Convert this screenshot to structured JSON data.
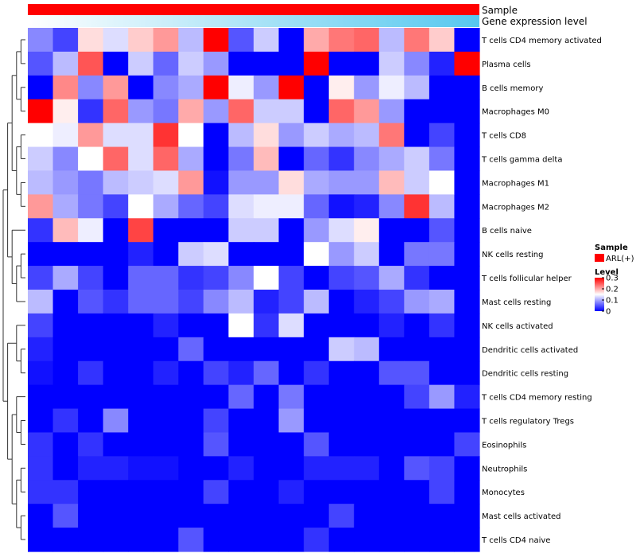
{
  "chart_data": {
    "type": "heatmap",
    "annotation_tracks": [
      {
        "name": "Sample",
        "color": "#ff0000"
      },
      {
        "name": "Gene expression level",
        "gradient": [
          "#ffffff",
          "#56c8ef"
        ]
      }
    ],
    "rows": [
      "T cells CD4 memory activated",
      "Plasma cells",
      "B cells memory",
      "Macrophages M0",
      "T cells CD8",
      "T cells gamma delta",
      "Macrophages M1",
      "Macrophages M2",
      "B cells naive",
      "NK cells resting",
      "T cells follicular helper",
      "Mast cells resting",
      "NK cells activated",
      "Dendritic cells activated",
      "Dendritic cells resting",
      "T cells CD4 memory resting",
      "T cells regulatory  Tregs",
      "Eosinophils",
      "Neutrophils",
      "Monocytes",
      "Mast cells activated",
      "T cells CD4 naive"
    ],
    "n_columns": 18,
    "values": [
      [
        0.08,
        0.04,
        0.17,
        0.13,
        0.18,
        0.21,
        0.11,
        0.3,
        0.05,
        0.12,
        0.0,
        0.2,
        0.23,
        0.24,
        0.11,
        0.23,
        0.18,
        0.0
      ],
      [
        0.05,
        0.11,
        0.25,
        0.0,
        0.12,
        0.06,
        0.12,
        0.09,
        0.0,
        0.0,
        0.0,
        0.3,
        0.0,
        0.0,
        0.12,
        0.08,
        0.02,
        0.3
      ],
      [
        0.0,
        0.22,
        0.08,
        0.21,
        0.0,
        0.08,
        0.1,
        0.3,
        0.14,
        0.09,
        0.3,
        0.0,
        0.16,
        0.09,
        0.14,
        0.11,
        0.0,
        0.0
      ],
      [
        0.3,
        0.16,
        0.03,
        0.24,
        0.09,
        0.07,
        0.2,
        0.09,
        0.24,
        0.12,
        0.12,
        0.0,
        0.24,
        0.21,
        0.09,
        0.0,
        0.0,
        0.0
      ],
      [
        0.15,
        0.14,
        0.21,
        0.13,
        0.13,
        0.27,
        0.15,
        0.0,
        0.11,
        0.17,
        0.09,
        0.12,
        0.1,
        0.11,
        0.23,
        0.0,
        0.04,
        0.0
      ],
      [
        0.12,
        0.08,
        0.15,
        0.24,
        0.13,
        0.24,
        0.1,
        0.0,
        0.07,
        0.19,
        0.0,
        0.06,
        0.03,
        0.08,
        0.1,
        0.12,
        0.07,
        0.0
      ],
      [
        0.11,
        0.09,
        0.07,
        0.11,
        0.12,
        0.13,
        0.21,
        0.01,
        0.09,
        0.09,
        0.17,
        0.1,
        0.09,
        0.09,
        0.19,
        0.12,
        0.15,
        0.0
      ],
      [
        0.21,
        0.1,
        0.07,
        0.04,
        0.15,
        0.1,
        0.06,
        0.04,
        0.13,
        0.14,
        0.14,
        0.06,
        0.01,
        0.02,
        0.08,
        0.27,
        0.11,
        0.0
      ],
      [
        0.03,
        0.19,
        0.14,
        0.0,
        0.26,
        0.0,
        0.0,
        0.0,
        0.12,
        0.12,
        0.0,
        0.09,
        0.13,
        0.16,
        0.0,
        0.0,
        0.05,
        0.0
      ],
      [
        0.0,
        0.0,
        0.0,
        0.0,
        0.02,
        0.0,
        0.12,
        0.13,
        0.0,
        0.0,
        0.0,
        0.15,
        0.09,
        0.12,
        0.0,
        0.07,
        0.07,
        0.0
      ],
      [
        0.04,
        0.1,
        0.04,
        0.0,
        0.06,
        0.06,
        0.03,
        0.04,
        0.08,
        0.15,
        0.04,
        0.0,
        0.04,
        0.05,
        0.1,
        0.03,
        0.0,
        0.0
      ],
      [
        0.11,
        0.0,
        0.05,
        0.03,
        0.06,
        0.06,
        0.04,
        0.08,
        0.11,
        0.02,
        0.04,
        0.11,
        0.0,
        0.02,
        0.04,
        0.09,
        0.1,
        0.0
      ],
      [
        0.04,
        0.0,
        0.0,
        0.0,
        0.0,
        0.02,
        0.0,
        0.0,
        0.15,
        0.03,
        0.13,
        0.0,
        0.0,
        0.0,
        0.02,
        0.0,
        0.03,
        0.0
      ],
      [
        0.02,
        0.0,
        0.0,
        0.0,
        0.0,
        0.0,
        0.06,
        0.0,
        0.0,
        0.0,
        0.0,
        0.0,
        0.12,
        0.11,
        0.0,
        0.0,
        0.0,
        0.0
      ],
      [
        0.01,
        0.0,
        0.03,
        0.0,
        0.0,
        0.02,
        0.0,
        0.04,
        0.02,
        0.06,
        0.0,
        0.03,
        0.0,
        0.0,
        0.05,
        0.05,
        0.0,
        0.0
      ],
      [
        0.0,
        0.0,
        0.0,
        0.0,
        0.0,
        0.0,
        0.0,
        0.0,
        0.06,
        0.0,
        0.07,
        0.0,
        0.0,
        0.0,
        0.0,
        0.04,
        0.09,
        0.02
      ],
      [
        0.0,
        0.03,
        0.0,
        0.08,
        0.0,
        0.0,
        0.0,
        0.04,
        0.0,
        0.0,
        0.09,
        0.0,
        0.0,
        0.0,
        0.0,
        0.0,
        0.0,
        0.0
      ],
      [
        0.03,
        0.0,
        0.03,
        0.0,
        0.0,
        0.0,
        0.0,
        0.05,
        0.0,
        0.0,
        0.0,
        0.05,
        0.0,
        0.0,
        0.0,
        0.0,
        0.0,
        0.04
      ],
      [
        0.03,
        0.0,
        0.02,
        0.02,
        0.01,
        0.01,
        0.0,
        0.0,
        0.02,
        0.0,
        0.0,
        0.02,
        0.02,
        0.02,
        0.0,
        0.05,
        0.04,
        0.0
      ],
      [
        0.03,
        0.03,
        0.0,
        0.0,
        0.0,
        0.0,
        0.0,
        0.04,
        0.0,
        0.0,
        0.02,
        0.0,
        0.0,
        0.0,
        0.0,
        0.0,
        0.04,
        0.0
      ],
      [
        0.0,
        0.05,
        0.0,
        0.0,
        0.0,
        0.0,
        0.0,
        0.0,
        0.0,
        0.0,
        0.0,
        0.0,
        0.04,
        0.0,
        0.0,
        0.0,
        0.0,
        0.0
      ],
      [
        0.0,
        0.0,
        0.0,
        0.0,
        0.0,
        0.0,
        0.05,
        0.0,
        0.0,
        0.0,
        0.0,
        0.03,
        0.0,
        0.0,
        0.0,
        0.0,
        0.0,
        0.0
      ]
    ],
    "color_scale": {
      "min": 0,
      "mid": 0.15,
      "max": 0.3,
      "colors": [
        "#0000ff",
        "#ffffff",
        "#ff0000"
      ]
    },
    "legend": {
      "sample_title": "Sample",
      "sample_entry": "ARL(+)",
      "sample_color": "#ff0000",
      "level_title": "Level",
      "level_ticks": [
        "0.3",
        "0.2",
        "0.1",
        "0"
      ],
      "level_tick_values": [
        0.3,
        0.2,
        0.1,
        0
      ]
    }
  }
}
